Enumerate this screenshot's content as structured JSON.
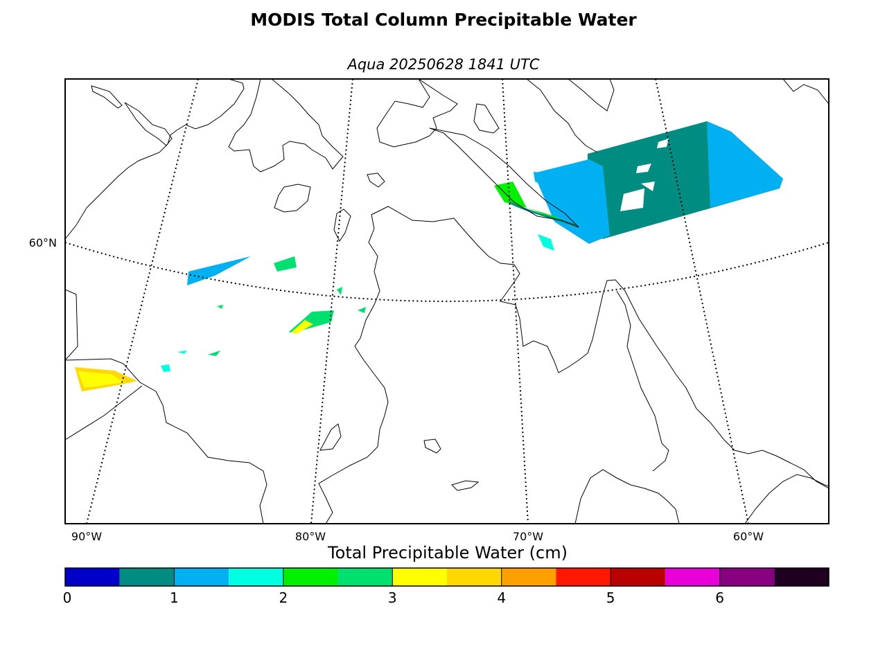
{
  "title": "MODIS Total Column Precipitable Water",
  "subtitle": "Aqua 20250628 1841 UTC",
  "map": {
    "lat_labels": [
      {
        "text": "60°N"
      }
    ],
    "lon_labels": [
      {
        "text": "90°W"
      },
      {
        "text": "80°W"
      },
      {
        "text": "70°W"
      },
      {
        "text": "60°W"
      }
    ]
  },
  "colorbar": {
    "title": "Total Precipitable Water (cm)",
    "min": 0,
    "max": 7,
    "step": 0.5,
    "colors": [
      "#0000c8",
      "#008c80",
      "#00b0f0",
      "#00ffe0",
      "#00f000",
      "#00e070",
      "#ffff00",
      "#ffd800",
      "#ffa000",
      "#ff1800",
      "#b80000",
      "#e800d8",
      "#880080",
      "#200020"
    ],
    "ticks": [
      {
        "value": 0,
        "label": "0"
      },
      {
        "value": 1,
        "label": "1"
      },
      {
        "value": 2,
        "label": "2"
      },
      {
        "value": 3,
        "label": "3"
      },
      {
        "value": 4,
        "label": "4"
      },
      {
        "value": 5,
        "label": "5"
      },
      {
        "value": 6,
        "label": "6"
      }
    ]
  }
}
